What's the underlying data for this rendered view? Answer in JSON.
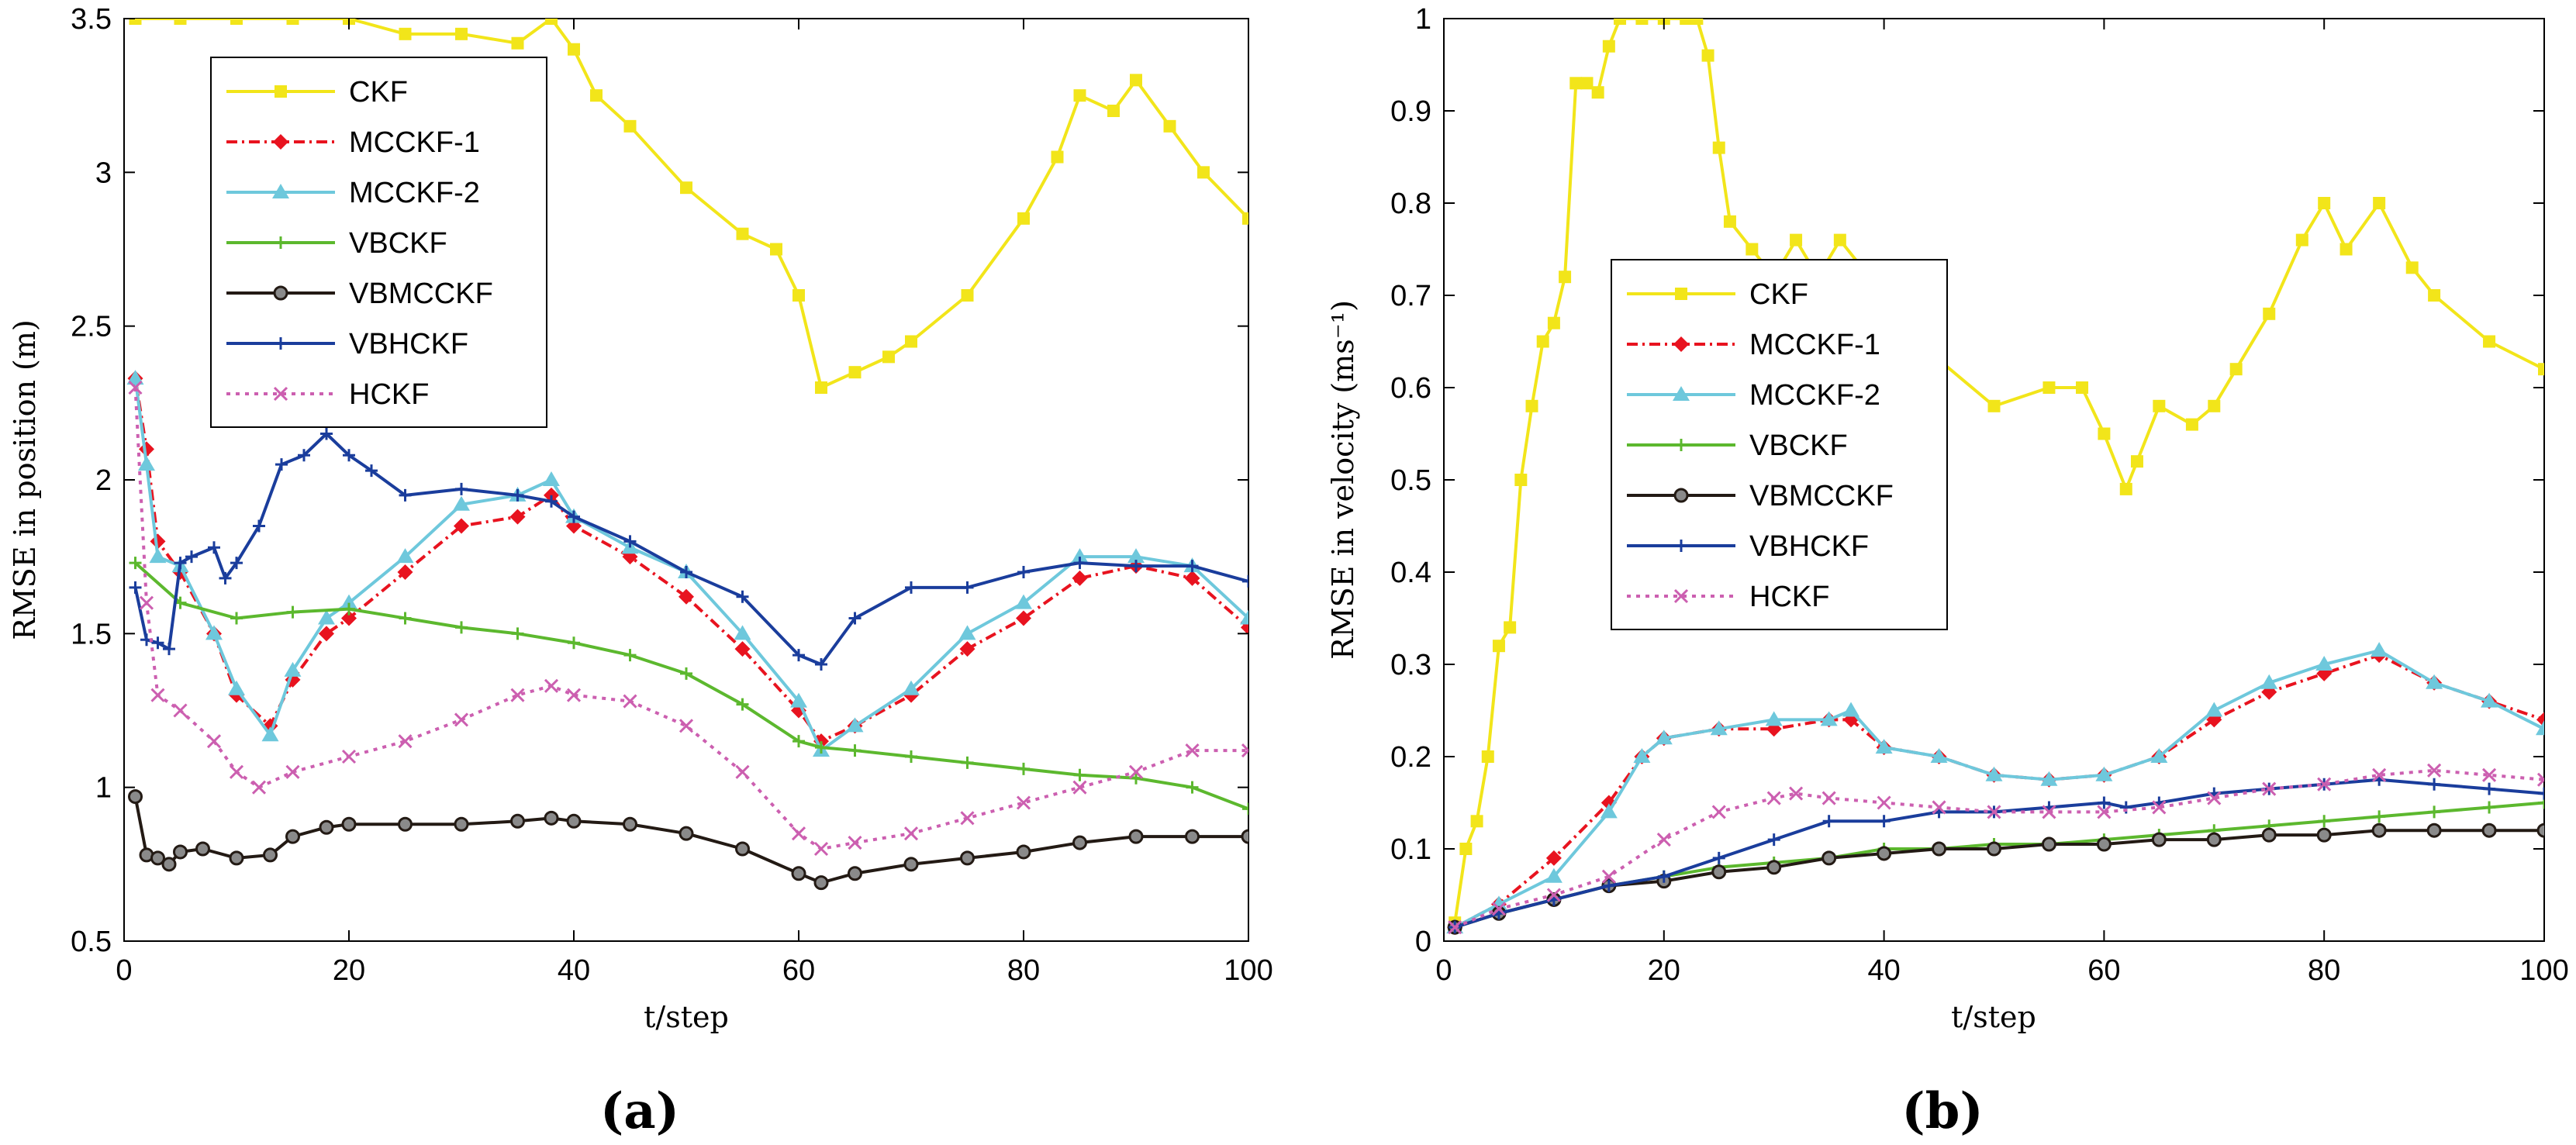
{
  "chart_data": [
    {
      "type": "line",
      "panel_label": "(a)",
      "xlabel": "t/step",
      "ylabel": "RMSE in position (m)",
      "xlim": [
        0,
        100
      ],
      "ylim": [
        0.5,
        3.5
      ],
      "xticks": [
        "0",
        "20",
        "40",
        "60",
        "80",
        "100"
      ],
      "yticks": [
        "0.5",
        "1",
        "1.5",
        "2",
        "2.5",
        "3",
        "3.5"
      ],
      "grid": false,
      "legend_position": "top-left",
      "series": [
        {
          "name": "CKF",
          "color": "#f2e51a",
          "marker": "square",
          "dash": "",
          "x": [
            1,
            5,
            10,
            15,
            20,
            25,
            30,
            35,
            38,
            40,
            42,
            45,
            50,
            55,
            58,
            60,
            62,
            65,
            68,
            70,
            75,
            80,
            83,
            85,
            88,
            90,
            93,
            96,
            100
          ],
          "y": [
            3.5,
            3.5,
            3.5,
            3.5,
            3.5,
            3.45,
            3.45,
            3.42,
            3.5,
            3.4,
            3.25,
            3.15,
            2.95,
            2.8,
            2.75,
            2.6,
            2.3,
            2.35,
            2.4,
            2.45,
            2.6,
            2.85,
            3.05,
            3.25,
            3.2,
            3.3,
            3.15,
            3.0,
            2.85
          ]
        },
        {
          "name": "MCCKF-1",
          "color": "#e8131f",
          "marker": "diamond",
          "dash": "14,6,3,6",
          "x": [
            1,
            2,
            3,
            5,
            8,
            10,
            13,
            15,
            18,
            20,
            25,
            30,
            35,
            38,
            40,
            45,
            50,
            55,
            60,
            62,
            65,
            70,
            75,
            80,
            85,
            90,
            95,
            100
          ],
          "y": [
            2.33,
            2.1,
            1.8,
            1.7,
            1.5,
            1.3,
            1.2,
            1.35,
            1.5,
            1.55,
            1.7,
            1.85,
            1.88,
            1.95,
            1.85,
            1.75,
            1.62,
            1.45,
            1.25,
            1.15,
            1.2,
            1.3,
            1.45,
            1.55,
            1.68,
            1.72,
            1.68,
            1.52
          ]
        },
        {
          "name": "MCCKF-2",
          "color": "#6ec8dc",
          "marker": "triangle",
          "dash": "",
          "x": [
            1,
            2,
            3,
            5,
            8,
            10,
            13,
            15,
            18,
            20,
            25,
            30,
            35,
            38,
            40,
            45,
            50,
            55,
            60,
            62,
            65,
            70,
            75,
            80,
            85,
            90,
            95,
            100
          ],
          "y": [
            2.33,
            2.05,
            1.75,
            1.72,
            1.5,
            1.32,
            1.17,
            1.38,
            1.55,
            1.6,
            1.75,
            1.92,
            1.95,
            2.0,
            1.88,
            1.78,
            1.7,
            1.5,
            1.28,
            1.12,
            1.2,
            1.32,
            1.5,
            1.6,
            1.75,
            1.75,
            1.72,
            1.55
          ]
        },
        {
          "name": "VBCKF",
          "color": "#5cb82e",
          "marker": "plus",
          "dash": "",
          "x": [
            1,
            5,
            10,
            15,
            20,
            25,
            30,
            35,
            40,
            45,
            50,
            55,
            60,
            62,
            65,
            70,
            75,
            80,
            85,
            90,
            95,
            100
          ],
          "y": [
            1.73,
            1.6,
            1.55,
            1.57,
            1.58,
            1.55,
            1.52,
            1.5,
            1.47,
            1.43,
            1.37,
            1.27,
            1.15,
            1.13,
            1.12,
            1.1,
            1.08,
            1.06,
            1.04,
            1.03,
            1.0,
            0.93
          ]
        },
        {
          "name": "VBMCCKF",
          "color": "#231a14",
          "marker": "circle",
          "dash": "",
          "x": [
            1,
            2,
            3,
            4,
            5,
            7,
            10,
            13,
            15,
            18,
            20,
            25,
            30,
            35,
            38,
            40,
            45,
            50,
            55,
            60,
            62,
            65,
            70,
            75,
            80,
            85,
            90,
            95,
            100
          ],
          "y": [
            0.97,
            0.78,
            0.77,
            0.75,
            0.79,
            0.8,
            0.77,
            0.78,
            0.84,
            0.87,
            0.88,
            0.88,
            0.88,
            0.89,
            0.9,
            0.89,
            0.88,
            0.85,
            0.8,
            0.72,
            0.69,
            0.72,
            0.75,
            0.77,
            0.79,
            0.82,
            0.84,
            0.84,
            0.84
          ]
        },
        {
          "name": "VBHCKF",
          "color": "#1a3d9c",
          "marker": "plus",
          "dash": "",
          "x": [
            1,
            2,
            3,
            4,
            5,
            6,
            8,
            9,
            10,
            12,
            14,
            16,
            18,
            20,
            22,
            25,
            30,
            35,
            38,
            40,
            45,
            50,
            55,
            60,
            62,
            65,
            70,
            75,
            80,
            85,
            90,
            95,
            100
          ],
          "y": [
            1.65,
            1.48,
            1.47,
            1.45,
            1.73,
            1.75,
            1.78,
            1.68,
            1.73,
            1.85,
            2.05,
            2.08,
            2.15,
            2.08,
            2.03,
            1.95,
            1.97,
            1.95,
            1.93,
            1.88,
            1.8,
            1.7,
            1.62,
            1.43,
            1.4,
            1.55,
            1.65,
            1.65,
            1.7,
            1.73,
            1.72,
            1.72,
            1.67
          ]
        },
        {
          "name": "HCKF",
          "color": "#cc5fb0",
          "marker": "cross",
          "dash": "5,7",
          "x": [
            1,
            2,
            3,
            5,
            8,
            10,
            12,
            15,
            20,
            25,
            30,
            35,
            38,
            40,
            45,
            50,
            55,
            60,
            62,
            65,
            70,
            75,
            80,
            85,
            90,
            95,
            100
          ],
          "y": [
            2.3,
            1.6,
            1.3,
            1.25,
            1.15,
            1.05,
            1.0,
            1.05,
            1.1,
            1.15,
            1.22,
            1.3,
            1.33,
            1.3,
            1.28,
            1.2,
            1.05,
            0.85,
            0.8,
            0.82,
            0.85,
            0.9,
            0.95,
            1.0,
            1.05,
            1.12,
            1.12
          ]
        }
      ]
    },
    {
      "type": "line",
      "panel_label": "(b)",
      "xlabel": "t/step",
      "ylabel": "RMSE in velocity (ms⁻¹)",
      "xlim": [
        0,
        100
      ],
      "ylim": [
        0,
        1
      ],
      "xticks": [
        "0",
        "20",
        "40",
        "60",
        "80",
        "100"
      ],
      "yticks": [
        "0",
        "0.1",
        "0.2",
        "0.3",
        "0.4",
        "0.5",
        "0.6",
        "0.7",
        "0.8",
        "0.9",
        "1"
      ],
      "grid": false,
      "legend_position": "center-left",
      "series": [
        {
          "name": "CKF",
          "color": "#f2e51a",
          "marker": "square",
          "dash": "",
          "x": [
            1,
            2,
            3,
            4,
            5,
            6,
            7,
            8,
            9,
            10,
            11,
            12,
            13,
            14,
            15,
            16,
            18,
            20,
            22,
            23,
            24,
            25,
            26,
            28,
            30,
            32,
            34,
            36,
            38,
            40,
            45,
            50,
            55,
            58,
            60,
            62,
            63,
            65,
            68,
            70,
            72,
            75,
            78,
            80,
            82,
            85,
            88,
            90,
            95,
            100
          ],
          "y": [
            0.02,
            0.1,
            0.13,
            0.2,
            0.32,
            0.34,
            0.5,
            0.58,
            0.65,
            0.67,
            0.72,
            0.93,
            0.93,
            0.92,
            0.97,
            1.0,
            1.0,
            1.0,
            1.0,
            1.0,
            0.96,
            0.86,
            0.78,
            0.75,
            0.72,
            0.76,
            0.72,
            0.76,
            0.73,
            0.7,
            0.63,
            0.58,
            0.6,
            0.6,
            0.55,
            0.49,
            0.52,
            0.58,
            0.56,
            0.58,
            0.62,
            0.68,
            0.76,
            0.8,
            0.75,
            0.8,
            0.73,
            0.7,
            0.65,
            0.62
          ]
        },
        {
          "name": "MCCKF-1",
          "color": "#e8131f",
          "marker": "diamond",
          "dash": "14,6,3,6",
          "x": [
            1,
            5,
            10,
            15,
            18,
            20,
            25,
            30,
            35,
            37,
            40,
            45,
            50,
            55,
            60,
            65,
            70,
            75,
            80,
            85,
            90,
            95,
            100
          ],
          "y": [
            0.015,
            0.04,
            0.09,
            0.15,
            0.2,
            0.22,
            0.23,
            0.23,
            0.24,
            0.24,
            0.21,
            0.2,
            0.18,
            0.175,
            0.18,
            0.2,
            0.24,
            0.27,
            0.29,
            0.31,
            0.28,
            0.26,
            0.24
          ]
        },
        {
          "name": "MCCKF-2",
          "color": "#6ec8dc",
          "marker": "triangle",
          "dash": "",
          "x": [
            1,
            5,
            10,
            15,
            18,
            20,
            25,
            30,
            35,
            37,
            40,
            45,
            50,
            55,
            60,
            65,
            70,
            75,
            80,
            85,
            90,
            95,
            100
          ],
          "y": [
            0.015,
            0.04,
            0.07,
            0.14,
            0.2,
            0.22,
            0.23,
            0.24,
            0.24,
            0.25,
            0.21,
            0.2,
            0.18,
            0.175,
            0.18,
            0.2,
            0.25,
            0.28,
            0.3,
            0.315,
            0.28,
            0.26,
            0.23
          ]
        },
        {
          "name": "VBCKF",
          "color": "#5cb82e",
          "marker": "plus",
          "dash": "",
          "x": [
            1,
            5,
            10,
            15,
            20,
            25,
            30,
            35,
            40,
            45,
            50,
            55,
            60,
            65,
            70,
            75,
            80,
            85,
            90,
            95,
            100
          ],
          "y": [
            0.015,
            0.03,
            0.045,
            0.06,
            0.07,
            0.08,
            0.085,
            0.09,
            0.1,
            0.1,
            0.105,
            0.105,
            0.11,
            0.115,
            0.12,
            0.125,
            0.13,
            0.135,
            0.14,
            0.145,
            0.15
          ]
        },
        {
          "name": "VBMCCKF",
          "color": "#231a14",
          "marker": "circle",
          "dash": "",
          "x": [
            1,
            5,
            10,
            15,
            20,
            25,
            30,
            35,
            40,
            45,
            50,
            55,
            60,
            65,
            70,
            75,
            80,
            85,
            90,
            95,
            100
          ],
          "y": [
            0.015,
            0.03,
            0.045,
            0.06,
            0.065,
            0.075,
            0.08,
            0.09,
            0.095,
            0.1,
            0.1,
            0.105,
            0.105,
            0.11,
            0.11,
            0.115,
            0.115,
            0.12,
            0.12,
            0.12,
            0.12
          ]
        },
        {
          "name": "VBHCKF",
          "color": "#1a3d9c",
          "marker": "plus",
          "dash": "",
          "x": [
            1,
            5,
            10,
            15,
            20,
            25,
            30,
            35,
            40,
            45,
            50,
            55,
            60,
            62,
            65,
            70,
            75,
            80,
            85,
            90,
            95,
            100
          ],
          "y": [
            0.015,
            0.03,
            0.045,
            0.06,
            0.07,
            0.09,
            0.11,
            0.13,
            0.13,
            0.14,
            0.14,
            0.145,
            0.15,
            0.145,
            0.15,
            0.16,
            0.165,
            0.17,
            0.175,
            0.17,
            0.165,
            0.16
          ]
        },
        {
          "name": "HCKF",
          "color": "#cc5fb0",
          "marker": "cross",
          "dash": "5,7",
          "x": [
            1,
            5,
            10,
            15,
            20,
            25,
            30,
            32,
            35,
            40,
            45,
            50,
            55,
            60,
            65,
            70,
            75,
            80,
            85,
            90,
            95,
            100
          ],
          "y": [
            0.015,
            0.035,
            0.05,
            0.07,
            0.11,
            0.14,
            0.155,
            0.16,
            0.155,
            0.15,
            0.145,
            0.14,
            0.14,
            0.14,
            0.145,
            0.155,
            0.165,
            0.17,
            0.18,
            0.185,
            0.18,
            0.175
          ]
        }
      ]
    }
  ]
}
